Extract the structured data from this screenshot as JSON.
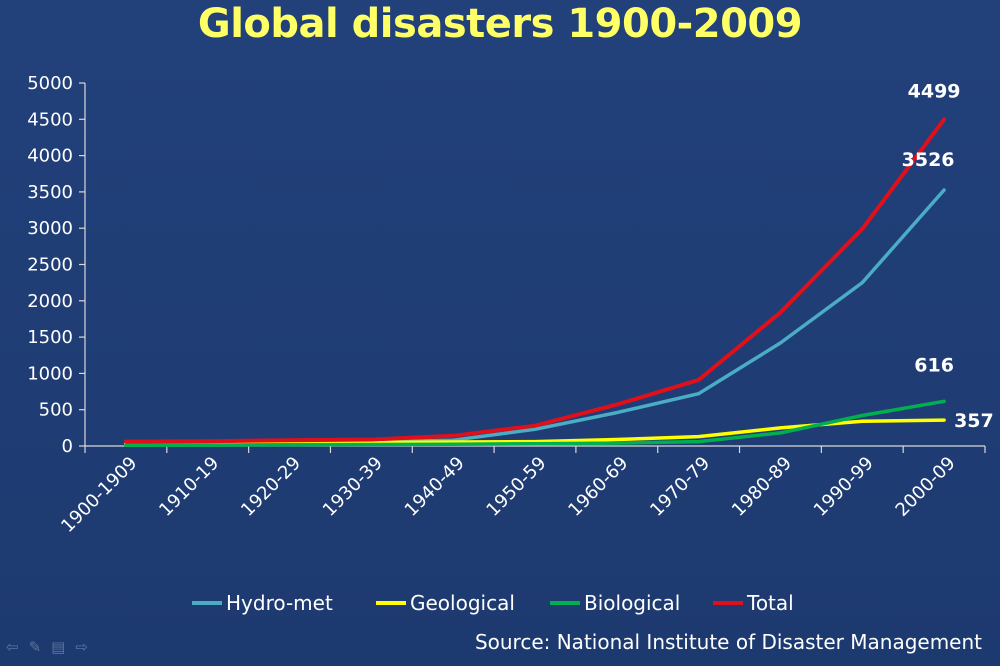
{
  "chart_data": {
    "type": "line",
    "title": "Global disasters 1900-2009",
    "xlabel": "",
    "ylabel": "",
    "ylim": [
      0,
      5000
    ],
    "yticks": [
      0,
      500,
      1000,
      1500,
      2000,
      2500,
      3000,
      3500,
      4000,
      4500,
      5000
    ],
    "categories": [
      "1900-1909",
      "1910-19",
      "1920-29",
      "1930-39",
      "1940-49",
      "1950-59",
      "1960-69",
      "1970-79",
      "1980-89",
      "1990-99",
      "2000-09"
    ],
    "grid": false,
    "legend_position": "bottom",
    "series": [
      {
        "name": "Hydro-met",
        "color": "#4bacc6",
        "values": [
          30,
          35,
          50,
          55,
          80,
          230,
          460,
          720,
          1420,
          2250,
          3526
        ]
      },
      {
        "name": "Geological",
        "color": "#ffff00",
        "values": [
          30,
          35,
          45,
          50,
          55,
          60,
          90,
          130,
          250,
          340,
          357
        ]
      },
      {
        "name": "Biological",
        "color": "#00b050",
        "values": [
          10,
          12,
          18,
          20,
          25,
          30,
          40,
          60,
          180,
          420,
          616
        ]
      },
      {
        "name": "Total",
        "color": "#e0101a",
        "values": [
          60,
          65,
          80,
          90,
          140,
          280,
          570,
          910,
          1840,
          2990,
          4499
        ]
      }
    ],
    "annotations": [
      {
        "series": "Total",
        "index": 10,
        "text": "4499"
      },
      {
        "series": "Hydro-met",
        "index": 10,
        "text": "3526"
      },
      {
        "series": "Biological",
        "index": 10,
        "text": "616"
      },
      {
        "series": "Geological",
        "index": 10,
        "text": "357"
      }
    ]
  },
  "source": "Source: National Institute of Disaster Management",
  "nav_icons": [
    "back-arrow-icon",
    "pen-icon",
    "slides-icon",
    "forward-arrow-icon"
  ]
}
